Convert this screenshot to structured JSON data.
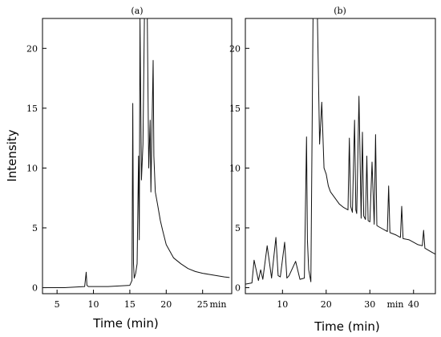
{
  "chart_data": [
    {
      "type": "line",
      "panel_label": "(a)",
      "ylabel": "Intensity",
      "xlabel": "Time (min)",
      "x_unit_label": "min",
      "xlim": [
        3,
        29
      ],
      "ylim": [
        -0.5,
        22.5
      ],
      "xticks": [
        5,
        10,
        15,
        20,
        25
      ],
      "yticks": [
        0,
        5,
        10,
        15,
        20
      ],
      "series": [
        {
          "x": [
            3.0,
            6.0,
            8.8,
            9.0,
            9.1,
            9.3,
            12.0,
            15.0,
            15.3,
            15.4,
            15.5,
            15.6,
            15.8,
            16.0,
            16.2,
            16.3,
            16.4,
            16.6,
            16.8,
            17.0,
            17.1,
            17.2,
            17.4,
            17.6,
            17.8,
            17.9,
            18.0,
            18.2,
            18.3,
            18.5,
            18.8,
            19.2,
            19.5,
            20.0,
            21.0,
            22.0,
            23.0,
            24.0,
            25.0,
            26.0,
            27.0,
            28.0,
            28.7
          ],
          "y": [
            0.0,
            0.0,
            0.1,
            1.3,
            0.2,
            0.1,
            0.1,
            0.2,
            0.6,
            15.4,
            2.0,
            0.8,
            1.2,
            2.0,
            11.0,
            4.0,
            22.5,
            9.0,
            12.0,
            22.5,
            22.5,
            22.5,
            22.5,
            10.0,
            14.0,
            8.0,
            12.0,
            19.0,
            11.0,
            8.0,
            7.0,
            5.6,
            4.8,
            3.6,
            2.5,
            2.0,
            1.6,
            1.35,
            1.2,
            1.1,
            1.0,
            0.9,
            0.85
          ]
        }
      ]
    },
    {
      "type": "line",
      "panel_label": "(b)",
      "xlabel": "Time (min)",
      "x_unit_label": "min",
      "xlim": [
        1.5,
        45
      ],
      "ylim": [
        -0.5,
        22.5
      ],
      "xticks": [
        10,
        20,
        30,
        40
      ],
      "yticks": [
        0,
        5,
        10,
        15,
        20
      ],
      "series": [
        {
          "x": [
            1.5,
            3.0,
            3.5,
            4.5,
            5.0,
            5.5,
            6.5,
            7.5,
            8.5,
            9.0,
            9.5,
            10.5,
            11.0,
            11.5,
            13.0,
            14.0,
            15.0,
            15.5,
            15.7,
            16.0,
            16.5,
            17.0,
            17.5,
            17.6,
            18.0,
            18.5,
            19.0,
            19.5,
            20.0,
            20.5,
            21.0,
            22.0,
            23.0,
            24.0,
            25.0,
            25.3,
            25.6,
            26.0,
            26.5,
            26.8,
            27.0,
            27.5,
            28.0,
            28.3,
            28.6,
            29.0,
            29.3,
            29.6,
            30.0,
            30.5,
            31.0,
            31.3,
            31.6,
            32.0,
            33.0,
            34.0,
            34.3,
            34.6,
            36.0,
            37.0,
            37.3,
            37.6,
            39.0,
            40.0,
            41.0,
            42.0,
            42.3,
            42.6,
            44.0,
            45.0
          ],
          "y": [
            0.3,
            0.4,
            2.3,
            0.6,
            1.5,
            0.7,
            3.5,
            0.8,
            4.2,
            1.0,
            0.9,
            3.8,
            0.8,
            1.0,
            2.2,
            0.7,
            0.8,
            12.6,
            4.0,
            1.5,
            0.5,
            22.5,
            22.5,
            22.5,
            22.5,
            12.0,
            15.5,
            10.0,
            9.5,
            8.5,
            8.0,
            7.5,
            7.0,
            6.7,
            6.5,
            12.5,
            6.8,
            6.3,
            14.0,
            6.5,
            6.2,
            16.0,
            5.8,
            13.0,
            6.0,
            5.7,
            11.0,
            5.6,
            5.5,
            10.5,
            5.3,
            12.8,
            5.2,
            5.1,
            4.9,
            4.7,
            8.5,
            4.6,
            4.4,
            4.2,
            6.8,
            4.1,
            4.0,
            3.8,
            3.6,
            3.5,
            4.8,
            3.3,
            3.0,
            2.8
          ]
        }
      ]
    }
  ]
}
